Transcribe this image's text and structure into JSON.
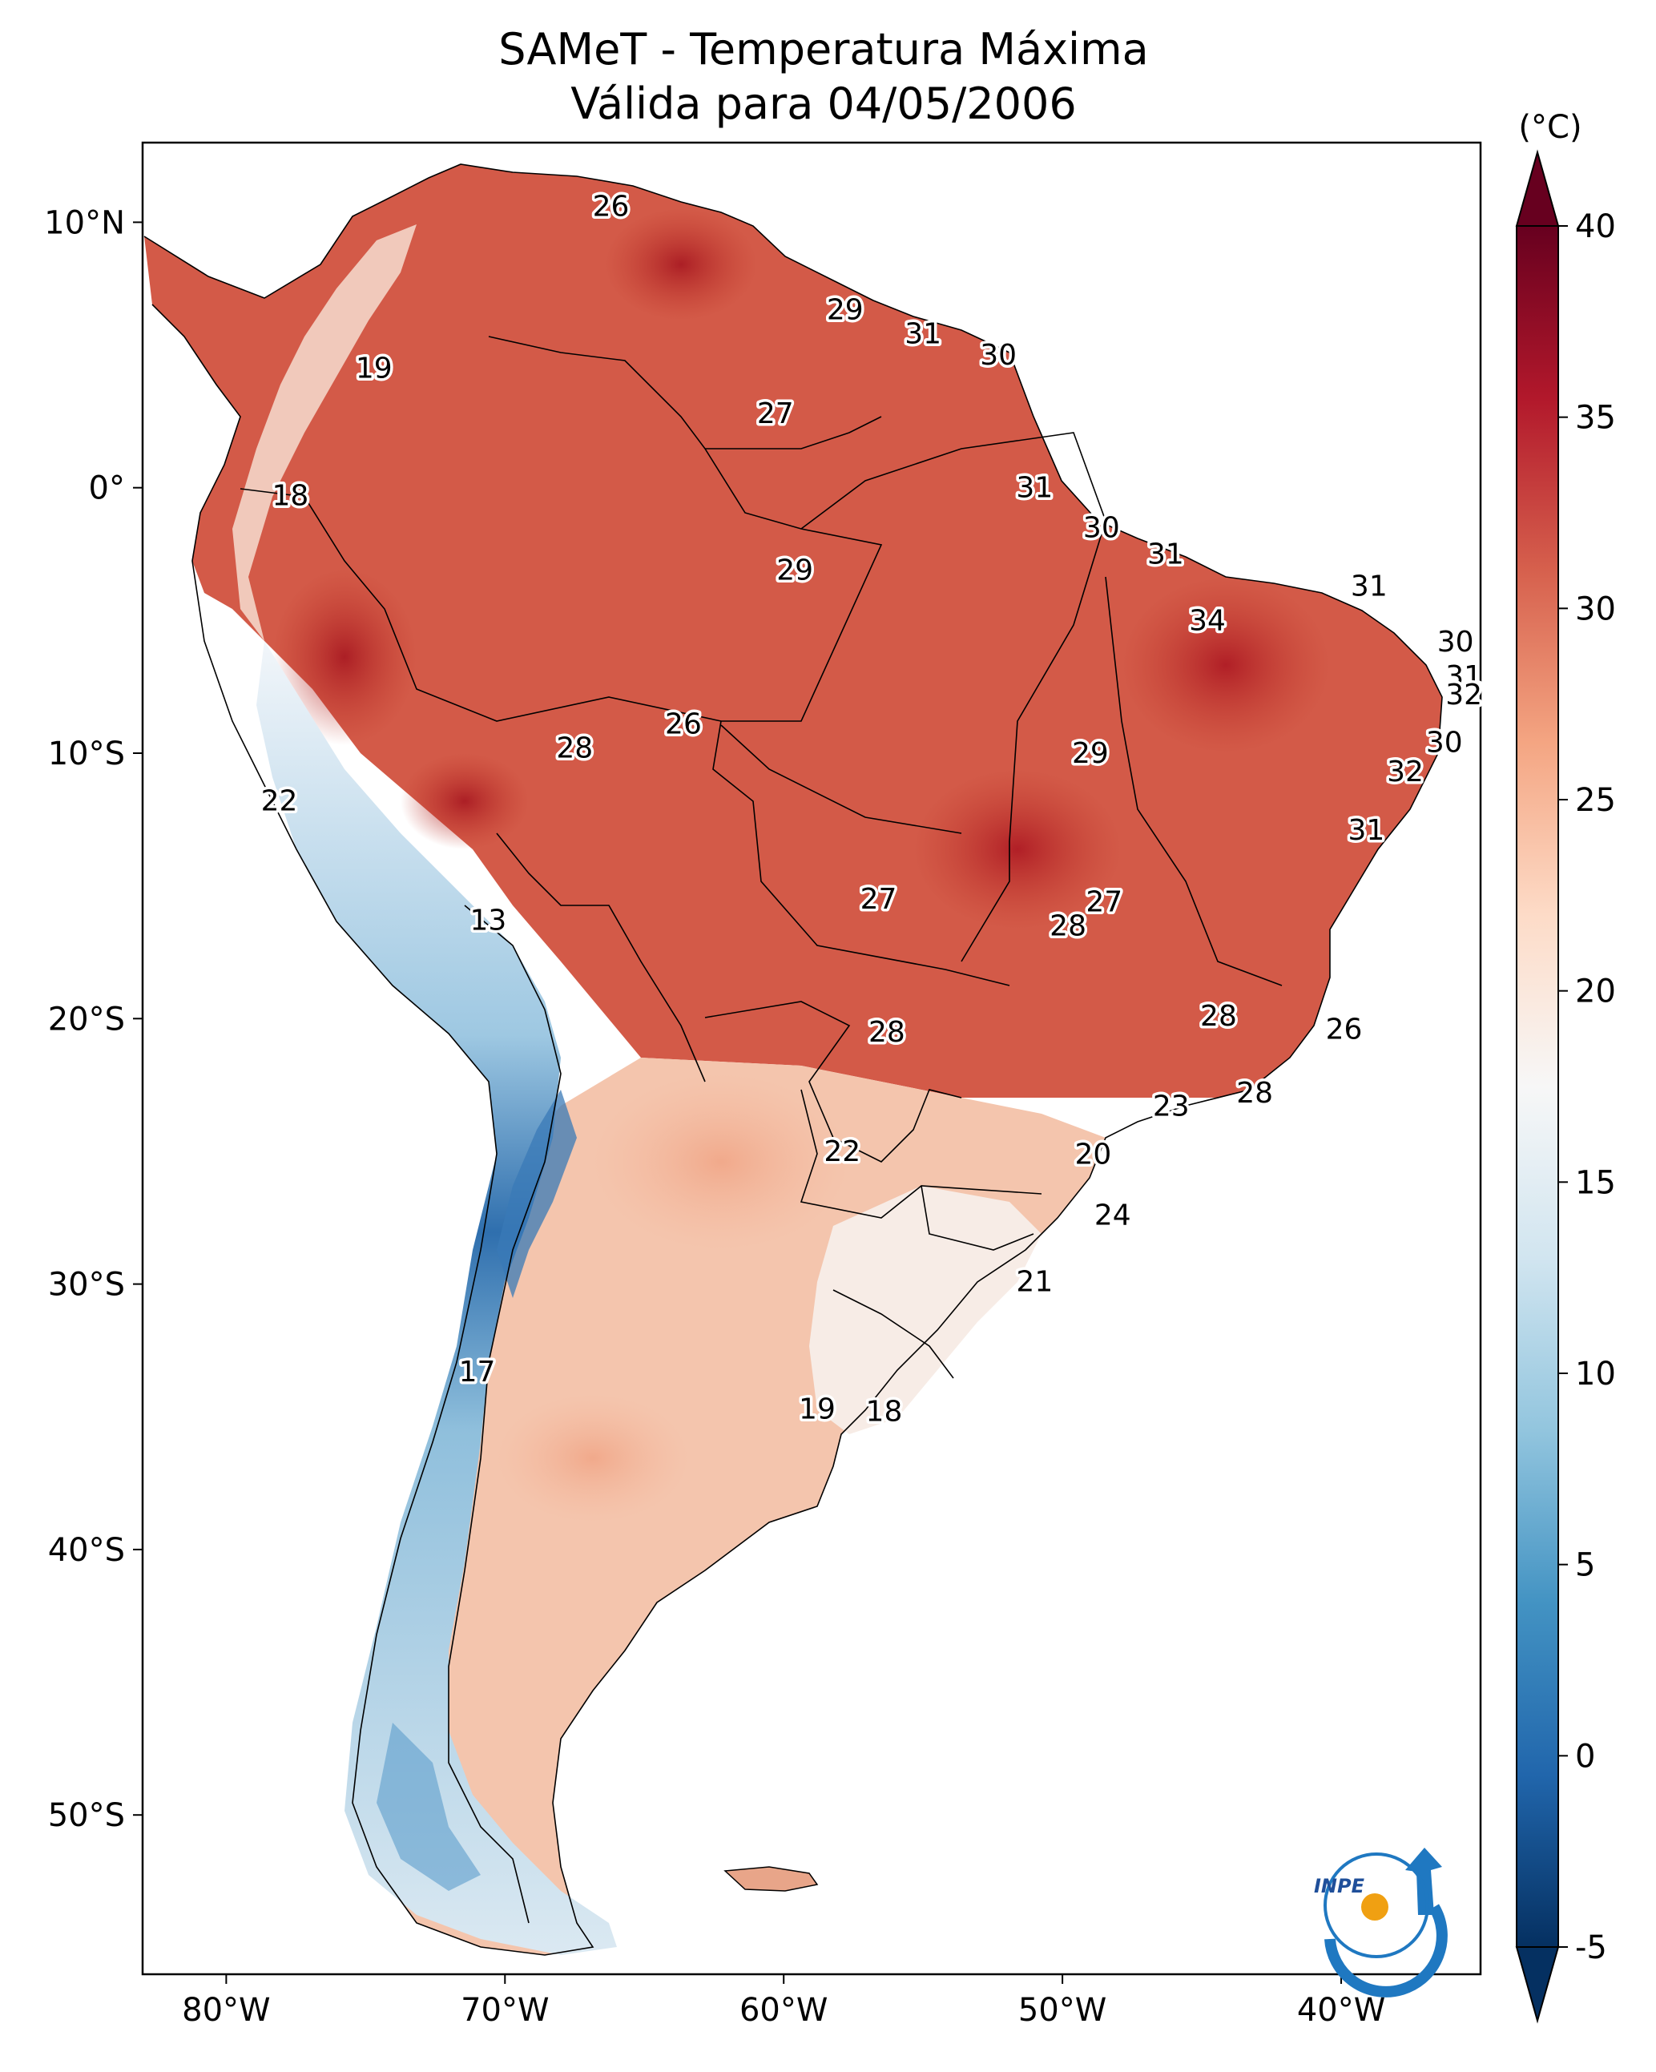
{
  "title": {
    "line1": "SAMeT - Temperatura Máxima",
    "line2": "Válida para 04/05/2006"
  },
  "map": {
    "extent": {
      "lon": [
        -83,
        -35
      ],
      "lat": [
        -56,
        13
      ]
    },
    "x_ticks": [
      {
        "lon": -80,
        "label": "80°W"
      },
      {
        "lon": -70,
        "label": "70°W"
      },
      {
        "lon": -60,
        "label": "60°W"
      },
      {
        "lon": -50,
        "label": "50°W"
      },
      {
        "lon": -40,
        "label": "40°W"
      }
    ],
    "y_ticks": [
      {
        "lat": 10,
        "label": "10°N"
      },
      {
        "lat": 0,
        "label": "0°"
      },
      {
        "lat": -10,
        "label": "10°S"
      },
      {
        "lat": -20,
        "label": "20°S"
      },
      {
        "lat": -30,
        "label": "30°S"
      },
      {
        "lat": -40,
        "label": "40°S"
      },
      {
        "lat": -50,
        "label": "50°S"
      }
    ],
    "value_labels": [
      {
        "lon": -66.2,
        "lat": 10.6,
        "text": "26"
      },
      {
        "lon": -57.8,
        "lat": 6.7,
        "text": "29"
      },
      {
        "lon": -55.0,
        "lat": 5.8,
        "text": "31"
      },
      {
        "lon": -52.3,
        "lat": 5.0,
        "text": "30"
      },
      {
        "lon": -74.7,
        "lat": 4.5,
        "text": "19"
      },
      {
        "lon": -60.3,
        "lat": 2.8,
        "text": "27"
      },
      {
        "lon": -77.7,
        "lat": -0.3,
        "text": "18"
      },
      {
        "lon": -51.0,
        "lat": 0.0,
        "text": "31"
      },
      {
        "lon": -48.6,
        "lat": -1.5,
        "text": "30"
      },
      {
        "lon": -46.3,
        "lat": -2.5,
        "text": "31"
      },
      {
        "lon": -59.6,
        "lat": -3.1,
        "text": "29"
      },
      {
        "lon": -39.0,
        "lat": -3.7,
        "text": "31"
      },
      {
        "lon": -44.8,
        "lat": -5.0,
        "text": "34"
      },
      {
        "lon": -35.9,
        "lat": -5.8,
        "text": "30"
      },
      {
        "lon": -35.6,
        "lat": -7.1,
        "text": "31"
      },
      {
        "lon": -35.6,
        "lat": -7.8,
        "text": "32"
      },
      {
        "lon": -63.6,
        "lat": -8.9,
        "text": "26"
      },
      {
        "lon": -67.5,
        "lat": -9.8,
        "text": "28"
      },
      {
        "lon": -49.0,
        "lat": -10.0,
        "text": "29"
      },
      {
        "lon": -36.3,
        "lat": -9.6,
        "text": "30"
      },
      {
        "lon": -37.7,
        "lat": -10.7,
        "text": "32"
      },
      {
        "lon": -78.1,
        "lat": -11.8,
        "text": "22"
      },
      {
        "lon": -39.1,
        "lat": -12.9,
        "text": "31"
      },
      {
        "lon": -56.6,
        "lat": -15.5,
        "text": "27"
      },
      {
        "lon": -48.5,
        "lat": -15.6,
        "text": "27"
      },
      {
        "lon": -49.8,
        "lat": -16.5,
        "text": "28"
      },
      {
        "lon": -70.6,
        "lat": -16.3,
        "text": "13"
      },
      {
        "lon": -44.4,
        "lat": -19.9,
        "text": "28"
      },
      {
        "lon": -39.9,
        "lat": -20.4,
        "text": "26"
      },
      {
        "lon": -56.3,
        "lat": -20.5,
        "text": "28"
      },
      {
        "lon": -43.1,
        "lat": -22.8,
        "text": "28"
      },
      {
        "lon": -46.1,
        "lat": -23.3,
        "text": "23"
      },
      {
        "lon": -57.9,
        "lat": -25.0,
        "text": "22"
      },
      {
        "lon": -48.9,
        "lat": -25.1,
        "text": "20"
      },
      {
        "lon": -48.2,
        "lat": -27.4,
        "text": "24"
      },
      {
        "lon": -51.0,
        "lat": -29.9,
        "text": "21"
      },
      {
        "lon": -71.0,
        "lat": -33.3,
        "text": "17"
      },
      {
        "lon": -58.8,
        "lat": -34.7,
        "text": "19"
      },
      {
        "lon": -56.4,
        "lat": -34.8,
        "text": "18"
      }
    ]
  },
  "colorbar": {
    "unit": "(°C)",
    "range": [
      -5,
      40
    ],
    "colors": [
      "#053061",
      "#2166ac",
      "#4393c3",
      "#92c5de",
      "#d1e5f0",
      "#f7f7f7",
      "#fddbc7",
      "#f4a582",
      "#d6604d",
      "#b2182b",
      "#67001f"
    ],
    "ticks": [
      {
        "value": 40,
        "label": "40"
      },
      {
        "value": 35,
        "label": "35"
      },
      {
        "value": 30,
        "label": "30"
      },
      {
        "value": 25,
        "label": "25"
      },
      {
        "value": 20,
        "label": "20"
      },
      {
        "value": 15,
        "label": "15"
      },
      {
        "value": 10,
        "label": "10"
      },
      {
        "value": 5,
        "label": "5"
      },
      {
        "value": 0,
        "label": "0"
      },
      {
        "value": -5,
        "label": "-5"
      }
    ]
  },
  "logo": {
    "text": "INPE",
    "colors": [
      "#1f78c1",
      "#f0a012"
    ]
  }
}
